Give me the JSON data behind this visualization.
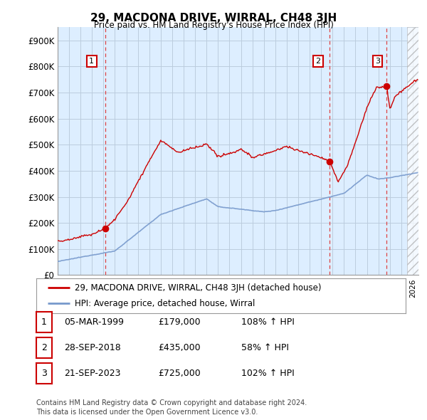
{
  "title": "29, MACDONA DRIVE, WIRRAL, CH48 3JH",
  "subtitle": "Price paid vs. HM Land Registry's House Price Index (HPI)",
  "ylabel_ticks": [
    "£0",
    "£100K",
    "£200K",
    "£300K",
    "£400K",
    "£500K",
    "£600K",
    "£700K",
    "£800K",
    "£900K"
  ],
  "ytick_values": [
    0,
    100000,
    200000,
    300000,
    400000,
    500000,
    600000,
    700000,
    800000,
    900000
  ],
  "ylim": [
    0,
    950000
  ],
  "xlim_start": 1995.0,
  "xlim_end": 2026.5,
  "chart_bg": "#ddeeff",
  "hpi_color": "#7799cc",
  "price_color": "#cc0000",
  "vline_color": "#dd4444",
  "purchases": [
    {
      "label": "1",
      "date_num": 1999.17,
      "price": 179000
    },
    {
      "label": "2",
      "date_num": 2018.74,
      "price": 435000
    },
    {
      "label": "3",
      "date_num": 2023.72,
      "price": 725000
    }
  ],
  "legend_line1": "29, MACDONA DRIVE, WIRRAL, CH48 3JH (detached house)",
  "legend_line2": "HPI: Average price, detached house, Wirral",
  "table_rows": [
    {
      "num": "1",
      "date": "05-MAR-1999",
      "price": "£179,000",
      "hpi": "108% ↑ HPI"
    },
    {
      "num": "2",
      "date": "28-SEP-2018",
      "price": "£435,000",
      "hpi": "58% ↑ HPI"
    },
    {
      "num": "3",
      "date": "21-SEP-2023",
      "price": "£725,000",
      "hpi": "102% ↑ HPI"
    }
  ],
  "footnote1": "Contains HM Land Registry data © Crown copyright and database right 2024.",
  "footnote2": "This data is licensed under the Open Government Licence v3.0.",
  "background_color": "#ffffff",
  "grid_color": "#bbccdd"
}
